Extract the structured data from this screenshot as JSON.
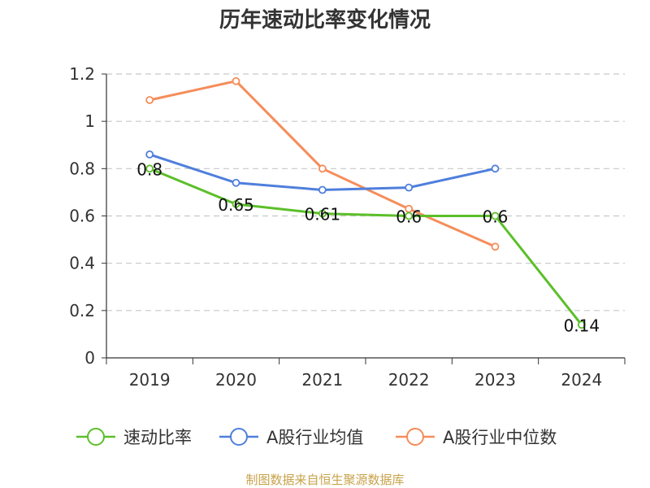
{
  "chart_data": {
    "type": "line",
    "title": "历年速动比率变化情况",
    "xlabel": "",
    "ylabel": "",
    "categories": [
      "2019",
      "2020",
      "2021",
      "2022",
      "2023",
      "2024"
    ],
    "ylim": [
      0,
      1.2
    ],
    "yticks": [
      "0",
      "0.2",
      "0.4",
      "0.6",
      "0.8",
      "1",
      "1.2"
    ],
    "grid": true,
    "legend_position": "bottom",
    "series": [
      {
        "name": "速动比率",
        "color": "#5cbf2a",
        "values": [
          0.8,
          0.65,
          0.61,
          0.6,
          0.6,
          0.14
        ],
        "labels": [
          "0.8",
          "0.65",
          "0.61",
          "0.6",
          "0.6",
          "0.14"
        ]
      },
      {
        "name": "A股行业均值",
        "color": "#4f7fdc",
        "values": [
          0.86,
          0.74,
          0.71,
          0.72,
          0.8,
          null
        ]
      },
      {
        "name": "A股行业中位数",
        "color": "#f58d5a",
        "values": [
          1.09,
          1.17,
          0.8,
          0.63,
          0.47,
          null
        ]
      }
    ],
    "source": "制图数据来自恒生聚源数据库"
  }
}
